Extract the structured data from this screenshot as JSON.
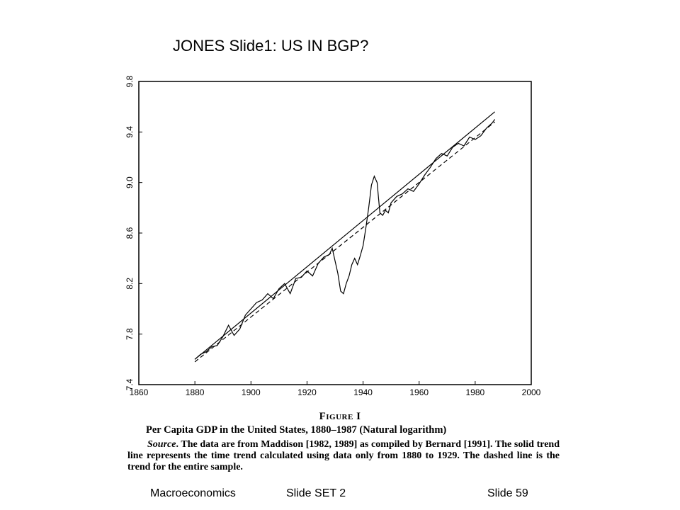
{
  "slide": {
    "title": "JONES Slide1: US IN BGP?"
  },
  "chart_data": {
    "type": "line",
    "title": "",
    "xlabel": "",
    "ylabel": "",
    "xlim": [
      1860,
      2000
    ],
    "ylim": [
      7.4,
      9.8
    ],
    "x_ticks": [
      1860,
      1880,
      1900,
      1920,
      1940,
      1960,
      1980,
      2000
    ],
    "y_ticks": [
      7.4,
      7.8,
      8.2,
      8.6,
      9.0,
      9.4,
      9.8
    ],
    "x_tick_labels": [
      "1860",
      "1880",
      "1900",
      "1920",
      "1940",
      "1960",
      "1980",
      "2000"
    ],
    "y_tick_labels": [
      "7.4",
      "7.8",
      "8.2",
      "8.6",
      "9.0",
      "9.4",
      "9.8"
    ],
    "grid": false,
    "series": [
      {
        "name": "",
        "style": "solid",
        "x": [
          1880,
          1882,
          1884,
          1886,
          1888,
          1890,
          1892,
          1894,
          1896,
          1898,
          1900,
          1902,
          1904,
          1906,
          1908,
          1910,
          1912,
          1914,
          1916,
          1918,
          1920,
          1922,
          1924,
          1926,
          1928,
          1929,
          1930,
          1931,
          1932,
          1933,
          1934,
          1935,
          1936,
          1937,
          1938,
          1939,
          1940,
          1941,
          1942,
          1943,
          1944,
          1945,
          1946,
          1947,
          1948,
          1949,
          1950,
          1952,
          1954,
          1956,
          1958,
          1960,
          1962,
          1964,
          1966,
          1968,
          1970,
          1972,
          1974,
          1976,
          1978,
          1980,
          1982,
          1984,
          1986,
          1987
        ],
        "y": [
          7.6,
          7.64,
          7.66,
          7.7,
          7.71,
          7.78,
          7.87,
          7.79,
          7.84,
          7.95,
          8.0,
          8.05,
          8.07,
          8.12,
          8.08,
          8.16,
          8.2,
          8.12,
          8.24,
          8.25,
          8.3,
          8.26,
          8.36,
          8.41,
          8.43,
          8.48,
          8.38,
          8.28,
          8.14,
          8.12,
          8.2,
          8.26,
          8.35,
          8.4,
          8.35,
          8.42,
          8.5,
          8.64,
          8.8,
          8.98,
          9.05,
          9.0,
          8.76,
          8.74,
          8.78,
          8.76,
          8.84,
          8.89,
          8.91,
          8.95,
          8.93,
          8.99,
          9.06,
          9.12,
          9.19,
          9.23,
          9.21,
          9.28,
          9.31,
          9.29,
          9.36,
          9.34,
          9.37,
          9.43,
          9.47,
          9.5
        ]
      },
      {
        "name": "",
        "style": "solid",
        "x": [
          1880,
          1987
        ],
        "y": [
          7.6,
          9.56
        ]
      },
      {
        "name": "",
        "style": "dashed",
        "x": [
          1880,
          1987
        ],
        "y": [
          7.58,
          9.48
        ]
      }
    ]
  },
  "caption": {
    "figure_label": "Figure I",
    "subtitle": "Per Capita GDP in the United States, 1880–1987 (Natural logarithm)",
    "source_label": "Source",
    "source_text": ". The data are from Maddison [1982, 1989] as compiled by Bernard [1991]. The solid trend line represents the time trend calculated using data only from 1880 to 1929. The dashed line is the trend for the entire sample."
  },
  "footer": {
    "left": "Macroeconomics",
    "center": "Slide SET 2",
    "right": "Slide 59"
  }
}
